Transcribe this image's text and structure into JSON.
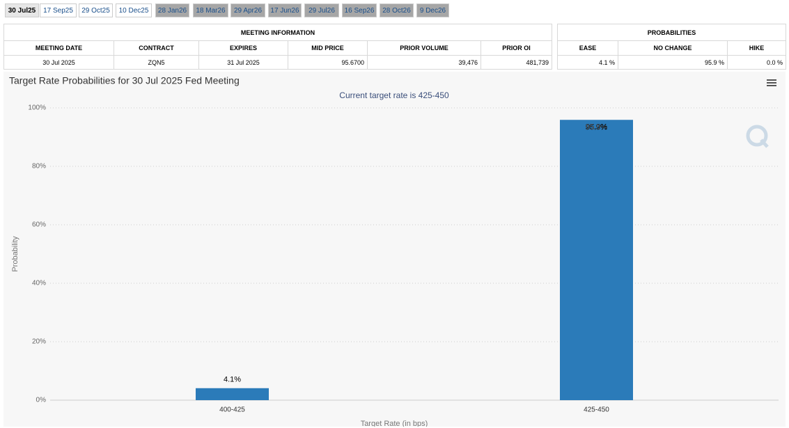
{
  "tabs": [
    "30 Jul25",
    "17 Sep25",
    "29 Oct25",
    "10 Dec25",
    "28 Jan26",
    "18 Mar26",
    "29 Apr26",
    "17 Jun26",
    "29 Jul26",
    "16 Sep26",
    "28 Oct26",
    "9 Dec26"
  ],
  "meeting_info": {
    "title": "MEETING INFORMATION",
    "columns": [
      "MEETING DATE",
      "CONTRACT",
      "EXPIRES",
      "MID PRICE",
      "PRIOR VOLUME",
      "PRIOR OI"
    ],
    "rows": [
      [
        "30 Jul 2025",
        "ZQN5",
        "31 Jul 2025",
        "95.6700",
        "39,476",
        "481,739"
      ]
    ]
  },
  "probabilities": {
    "title": "PROBABILITIES",
    "columns": [
      "EASE",
      "NO CHANGE",
      "HIKE"
    ],
    "rows": [
      [
        "4.1 %",
        "95.9 %",
        "0.0 %"
      ]
    ]
  },
  "chart_data": {
    "type": "bar",
    "title": "Target Rate Probabilities for 30 Jul 2025 Fed Meeting",
    "subtitle": "Current target rate is 425-450",
    "y_label": "Probability",
    "x_label": "Target Rate (in bps)",
    "categories": [
      "400-425",
      "425-450"
    ],
    "values": [
      4.1,
      95.9
    ],
    "value_labels": [
      "4.1%",
      "95.9%"
    ],
    "color": "#2b7bb9",
    "ylim": [
      0,
      100
    ],
    "yticks": [
      {
        "value": 0,
        "label": "0%"
      },
      {
        "value": 20,
        "label": "20%"
      },
      {
        "value": 40,
        "label": "40%"
      },
      {
        "value": 60,
        "label": "60%"
      },
      {
        "value": 80,
        "label": "80%"
      },
      {
        "value": 100,
        "label": "100%"
      }
    ],
    "grid": true
  }
}
